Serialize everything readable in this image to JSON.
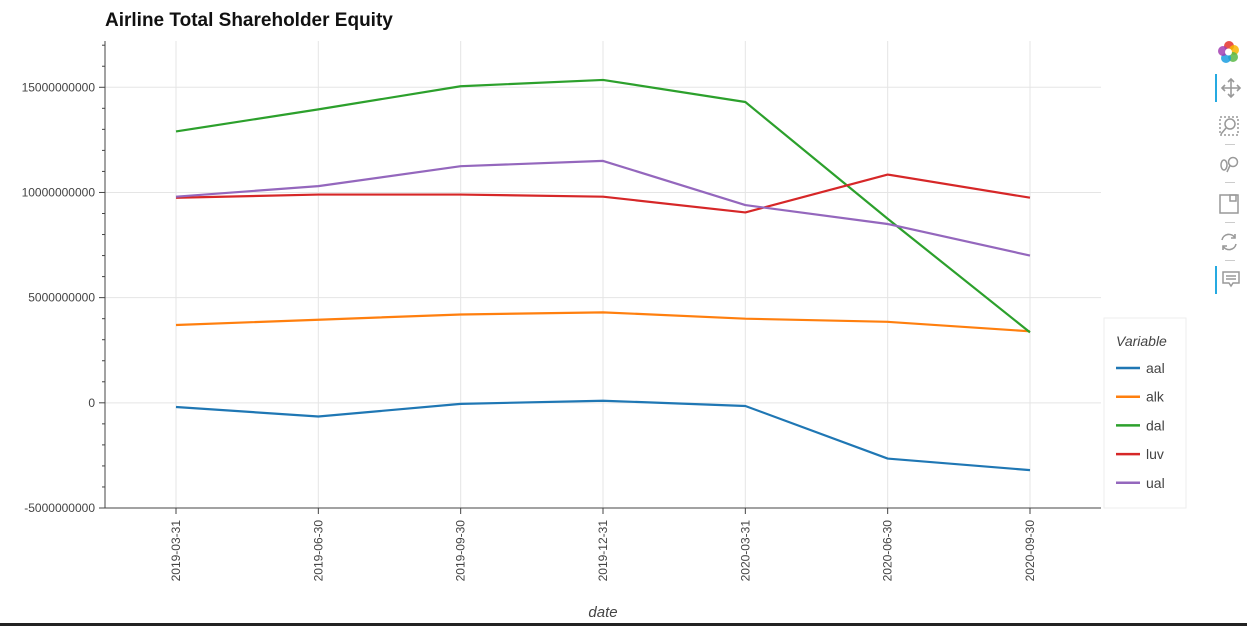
{
  "title": "Airline Total Shareholder Equity",
  "chart_data": {
    "type": "line",
    "title": "Airline Total Shareholder Equity",
    "xlabel": "date",
    "ylabel": "",
    "categories": [
      "2019-03-31",
      "2019-06-30",
      "2019-09-30",
      "2019-12-31",
      "2020-03-31",
      "2020-06-30",
      "2020-09-30"
    ],
    "ylim": [
      -5000000000,
      17200000000
    ],
    "yticks": [
      -5000000000,
      0,
      5000000000,
      10000000000,
      15000000000
    ],
    "ytick_labels": [
      "-5000000000",
      "0",
      "5000000000",
      "10000000000",
      "15000000000"
    ],
    "grid": true,
    "legend_title": "Variable",
    "legend_position": "right",
    "series": [
      {
        "name": "aal",
        "color": "#1f77b4",
        "values": [
          -200000000,
          -650000000,
          -50000000,
          100000000,
          -150000000,
          -2650000000,
          -3200000000
        ]
      },
      {
        "name": "alk",
        "color": "#ff7f0e",
        "values": [
          3700000000,
          3950000000,
          4200000000,
          4300000000,
          4000000000,
          3850000000,
          3400000000
        ]
      },
      {
        "name": "dal",
        "color": "#2ca02c",
        "values": [
          12900000000,
          13950000000,
          15050000000,
          15350000000,
          14300000000,
          8750000000,
          3350000000
        ]
      },
      {
        "name": "luv",
        "color": "#d62728",
        "values": [
          9750000000,
          9900000000,
          9900000000,
          9800000000,
          9050000000,
          10850000000,
          9750000000
        ]
      },
      {
        "name": "ual",
        "color": "#9467bd",
        "values": [
          9800000000,
          10300000000,
          11250000000,
          11500000000,
          9400000000,
          8500000000,
          7000000000
        ]
      }
    ]
  },
  "toolbar": {
    "tools": [
      "bokeh-logo-icon",
      "pan-icon",
      "box-zoom-icon",
      "wheel-zoom-icon",
      "save-icon",
      "reset-icon",
      "hover-icon"
    ]
  }
}
